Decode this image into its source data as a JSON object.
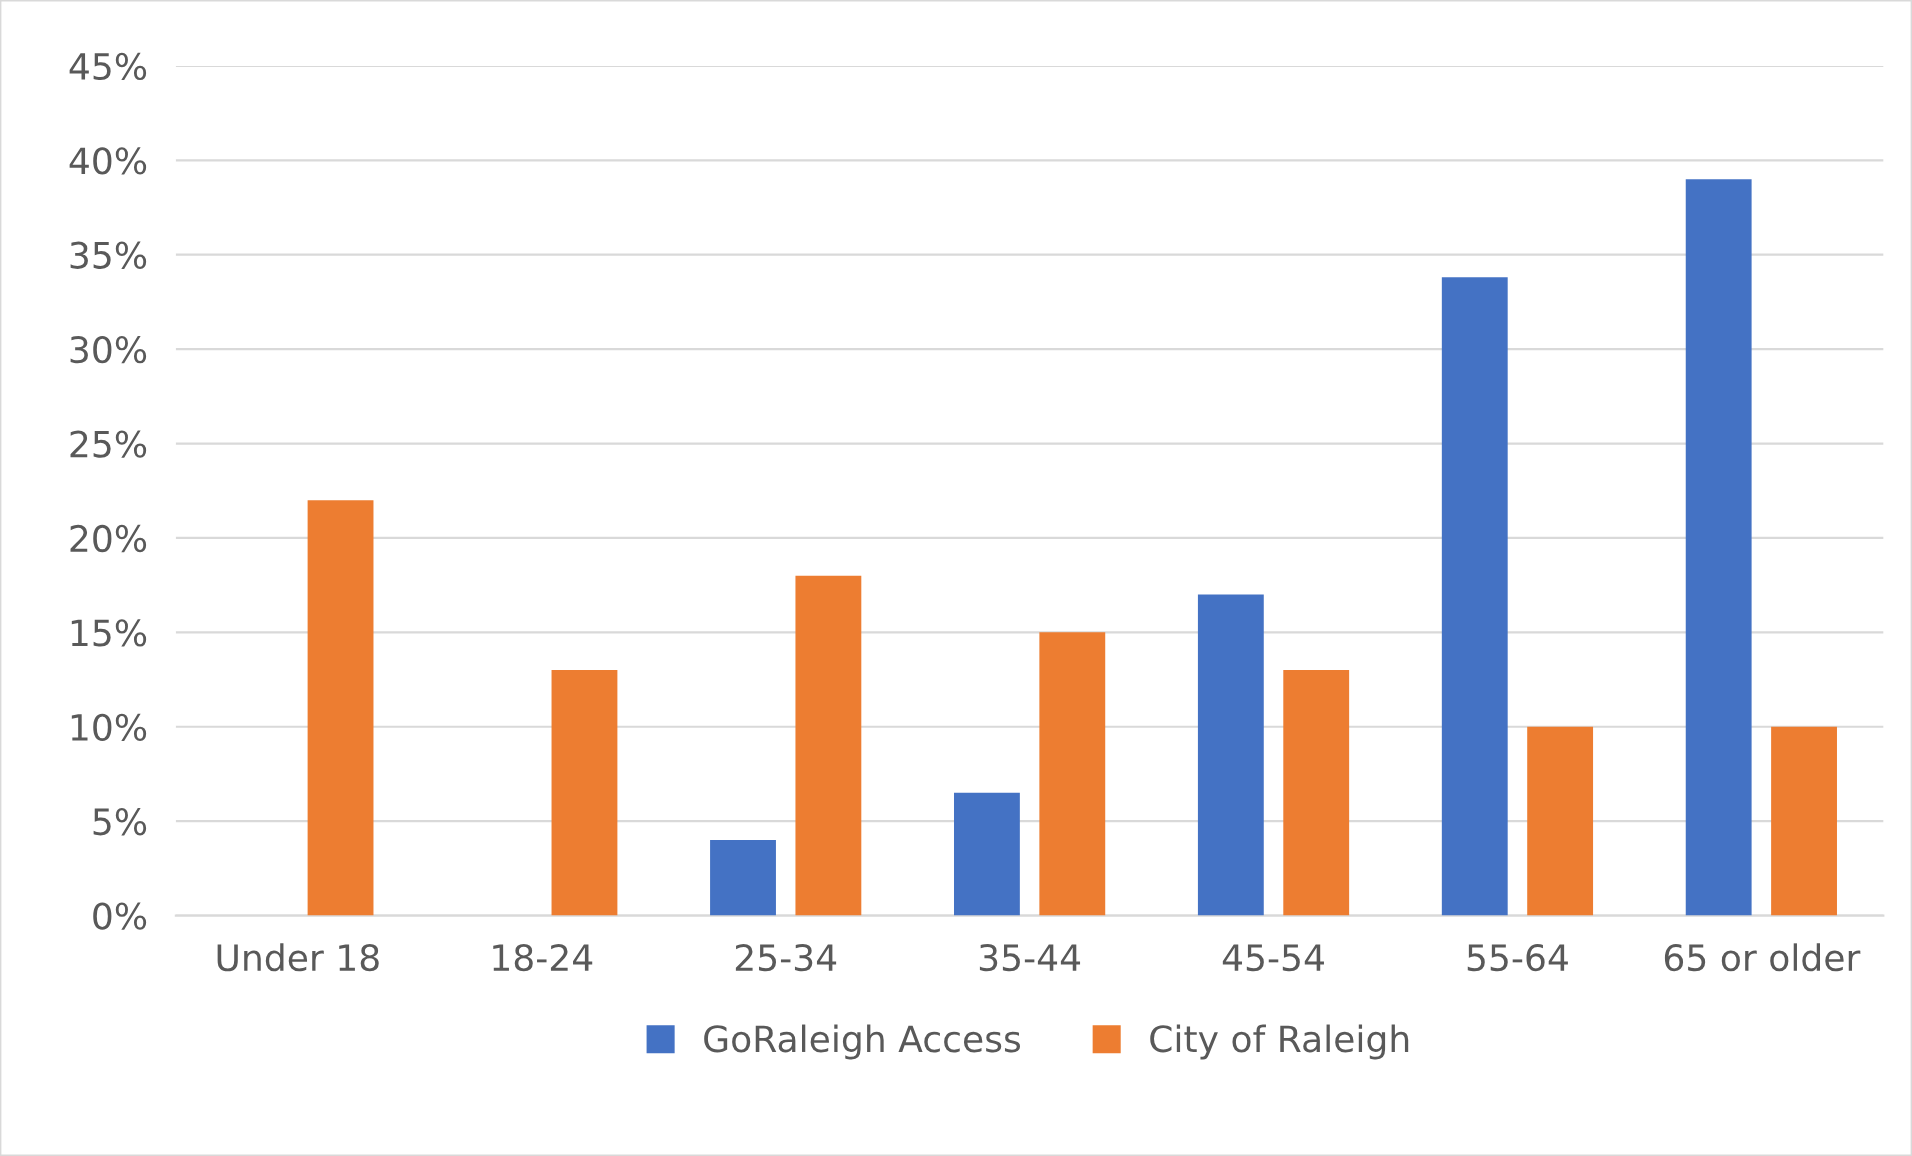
{
  "chart_data": {
    "type": "bar",
    "categories": [
      "Under 18",
      "18-24",
      "25-34",
      "35-44",
      "45-54",
      "55-64",
      "65 or older"
    ],
    "series": [
      {
        "name": "GoRaleigh Access",
        "color": "#4472c4",
        "values": [
          0,
          0,
          4,
          6.5,
          17,
          33.8,
          39
        ]
      },
      {
        "name": "City of Raleigh",
        "color": "#ed7d31",
        "values": [
          22,
          13,
          18,
          15,
          13,
          10,
          10
        ]
      }
    ],
    "ylim": [
      0,
      45
    ],
    "yticks": [
      {
        "value": 0,
        "label": "0%"
      },
      {
        "value": 5,
        "label": "5%"
      },
      {
        "value": 10,
        "label": "10%"
      },
      {
        "value": 15,
        "label": "15%"
      },
      {
        "value": 20,
        "label": "20%"
      },
      {
        "value": 25,
        "label": "25%"
      },
      {
        "value": 30,
        "label": "30%"
      },
      {
        "value": 35,
        "label": "35%"
      },
      {
        "value": 40,
        "label": "40%"
      },
      {
        "value": 45,
        "label": "45%"
      }
    ],
    "grid": "y",
    "legend": "bottom"
  }
}
